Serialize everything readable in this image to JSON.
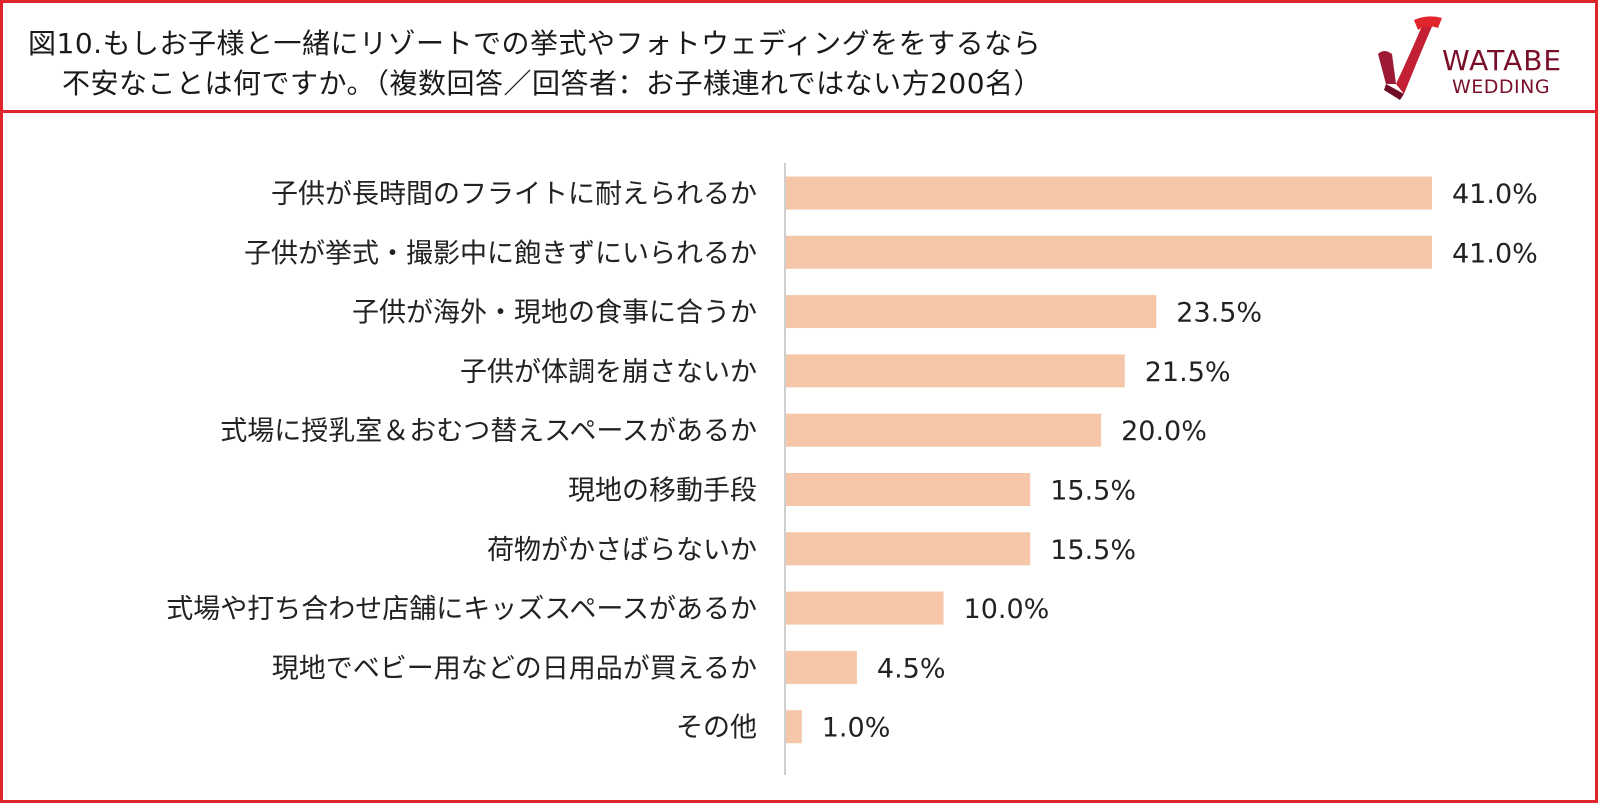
{
  "header": {
    "title_line1": "図10.もしお子様と一緒にリゾートでの挙式やフォトウェディングををするなら",
    "title_line2": "不安なことは何ですか。（複数回答／回答者：お子様連れではない方200名）",
    "logo_line1": "WATABE",
    "logo_line2": "WEDDING"
  },
  "colors": {
    "border": "#e0262c",
    "bar": "#f6c6a9",
    "axis": "#bfbfbf",
    "logo": "#7a0f2a"
  },
  "chart_data": {
    "type": "bar",
    "orientation": "horizontal",
    "categories": [
      "子供が長時間のフライトに耐えられるか",
      "子供が挙式・撮影中に飽きずにいられるか",
      "子供が海外・現地の食事に合うか",
      "子供が体調を崩さないか",
      "式場に授乳室＆おむつ替えスペースがあるか",
      "現地の移動手段",
      "荷物がかさばらないか",
      "式場や打ち合わせ店舗にキッズスペースがあるか",
      "現地でベビー用などの日用品が買えるか",
      "その他"
    ],
    "values": [
      41.0,
      41.0,
      23.5,
      21.5,
      20.0,
      15.5,
      15.5,
      10.0,
      4.5,
      1.0
    ],
    "labels": [
      "41.0%",
      "41.0%",
      "23.5%",
      "21.5%",
      "20.0%",
      "15.5%",
      "15.5%",
      "10.0%",
      "4.5%",
      "1.0%"
    ],
    "xlim": [
      0,
      41
    ],
    "grid": false,
    "legend": "none"
  }
}
